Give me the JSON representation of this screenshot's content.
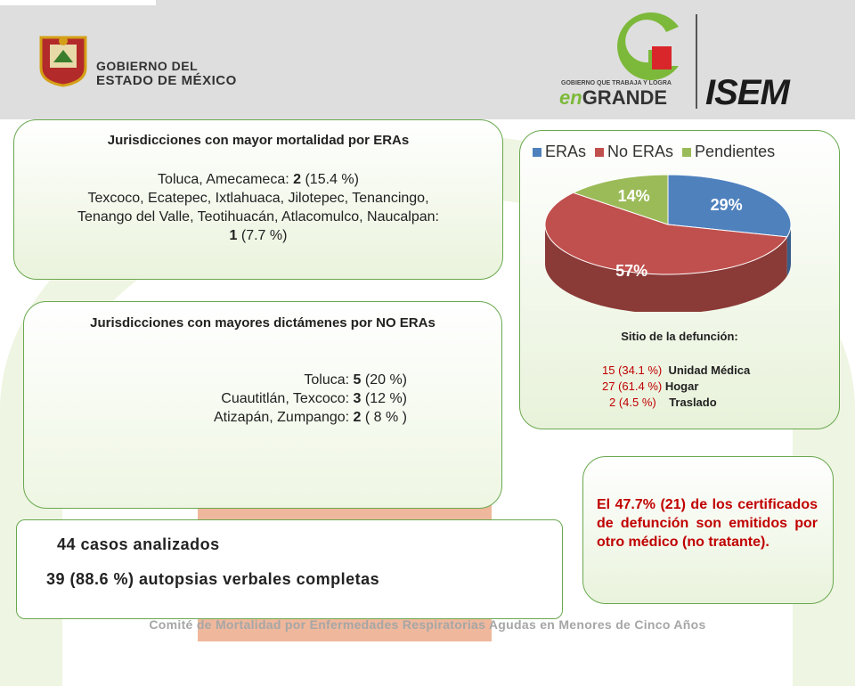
{
  "header": {
    "gov_line1": "GOBIERNO DEL",
    "gov_line2": "ESTADO DE MÉXICO",
    "slogan": "GOBIERNO QUE TRABAJA Y LOGRA",
    "engrande_en": "en",
    "engrande_rest": "GRANDE",
    "isem": "ISEM"
  },
  "mortalidad": {
    "title": "Jurisdicciones con mayor mortalidad por ERAs",
    "line1_text": "Toluca, Amecameca: ",
    "line1_num": "2",
    "line1_pct": " (15.4 %)",
    "line2": "Texcoco, Ecatepec, Ixtlahuaca, Jilotepec, Tenancingo,",
    "line3": "Tenango del Valle, Teotihuacán, Atlacomulco, Naucalpan:",
    "line4_num": "1",
    "line4_pct": " (7.7 %)"
  },
  "dictamenes": {
    "title": "Jurisdicciones con mayores dictámenes por NO ERAs",
    "rows": [
      {
        "label": "Toluca: ",
        "num": "5",
        "pct": " (20 %)"
      },
      {
        "label": "Cuautitlán, Texcoco: ",
        "num": "3",
        "pct": " (12 %)"
      },
      {
        "label": "Atizapán, Zumpango: ",
        "num": "2",
        "pct": " ( 8 % )"
      }
    ]
  },
  "chart_data": {
    "type": "pie",
    "legend_position": "top",
    "series": [
      {
        "name": "ERAs",
        "value": 29,
        "label": "29%",
        "color": "#4f81bd"
      },
      {
        "name": "No ERAs",
        "value": 57,
        "label": "57%",
        "color": "#c0504d"
      },
      {
        "name": "Pendientes",
        "value": 14,
        "label": "14%",
        "color": "#9bbb59"
      }
    ]
  },
  "sitio": {
    "title": "Sitio de la defunción:",
    "rows": [
      {
        "num": "15",
        "pct": " (34.1 %)",
        "label": "Unidad Médica"
      },
      {
        "num": "27",
        "pct": " (61.4  %)",
        "label": "Hogar"
      },
      {
        "num": "2",
        "pct": " (4.5 %)",
        "label": "Traslado"
      }
    ]
  },
  "note": "El 47.7% (21) de los certificados de defunción son emitidos por otro médico (no tratante).",
  "cases": {
    "line1": "44 casos analizados",
    "line2": "39 (88.6 %) autopsias verbales completas"
  },
  "footer": "Comité de Mortalidad por Enfermedades Respiratorias Agudas en Menores de Cinco Años"
}
